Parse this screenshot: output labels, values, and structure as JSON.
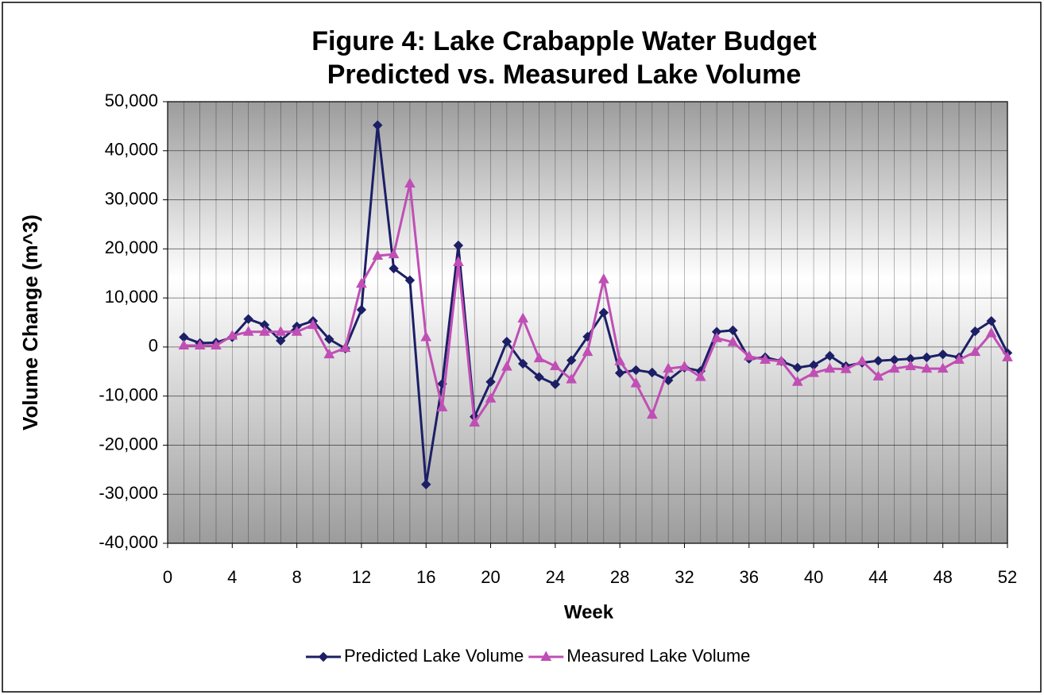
{
  "chart_data": {
    "type": "line",
    "title": "Figure 4:  Lake Crabapple Water Budget",
    "subtitle": "Predicted vs. Measured Lake Volume",
    "x_label": "Week",
    "y_label": "Volume Change (m^3)",
    "x": [
      1,
      2,
      3,
      4,
      5,
      6,
      7,
      8,
      9,
      10,
      11,
      12,
      13,
      14,
      15,
      16,
      17,
      18,
      19,
      20,
      21,
      22,
      23,
      24,
      25,
      26,
      27,
      28,
      29,
      30,
      31,
      32,
      33,
      34,
      35,
      36,
      37,
      38,
      39,
      40,
      41,
      42,
      43,
      44,
      45,
      46,
      47,
      48,
      49,
      50,
      51,
      52
    ],
    "series": [
      {
        "name": "Predicted Lake Volume",
        "color": "#1c1f66",
        "marker": "diamond",
        "values": [
          2000,
          800,
          900,
          2000,
          5700,
          4500,
          1300,
          4200,
          5300,
          1600,
          -300,
          7600,
          45200,
          16000,
          13600,
          -28000,
          -7500,
          20700,
          -14200,
          -7100,
          1100,
          -3400,
          -6100,
          -7600,
          -2700,
          2100,
          7000,
          -5300,
          -4700,
          -5200,
          -6800,
          -4200,
          -4900,
          3100,
          3400,
          -2400,
          -2100,
          -2900,
          -4200,
          -3700,
          -1800,
          -3900,
          -3200,
          -2800,
          -2600,
          -2400,
          -2100,
          -1500,
          -2100,
          3200,
          5300,
          -1200
        ]
      },
      {
        "name": "Measured Lake Volume",
        "color": "#c04fb5",
        "marker": "triangle",
        "values": [
          300,
          300,
          300,
          2300,
          3100,
          3100,
          3100,
          3100,
          4500,
          -1500,
          -200,
          12900,
          18600,
          18900,
          33300,
          2000,
          -12300,
          17300,
          -15400,
          -10500,
          -4000,
          5800,
          -2300,
          -3900,
          -6600,
          -1000,
          13800,
          -2900,
          -7400,
          -13800,
          -4400,
          -4000,
          -6100,
          1800,
          1000,
          -1900,
          -2600,
          -2900,
          -7100,
          -5300,
          -4400,
          -4500,
          -2900,
          -6000,
          -4400,
          -3900,
          -4400,
          -4400,
          -2600,
          -1000,
          2800,
          -2100
        ]
      }
    ],
    "xlim": [
      0,
      52
    ],
    "xticks": [
      0,
      4,
      8,
      12,
      16,
      20,
      24,
      28,
      32,
      36,
      40,
      44,
      48,
      52
    ],
    "ylim": [
      -40000,
      50000
    ],
    "yticks": [
      {
        "value": -40000,
        "label": "-40,000"
      },
      {
        "value": -30000,
        "label": "-30,000"
      },
      {
        "value": -20000,
        "label": "-20,000"
      },
      {
        "value": -10000,
        "label": "-10,000"
      },
      0,
      {
        "value": 10000,
        "label": "10,000"
      },
      {
        "value": 20000,
        "label": "20,000"
      },
      {
        "value": 30000,
        "label": "30,000"
      },
      {
        "value": 40000,
        "label": "40,000"
      },
      {
        "value": 50000,
        "label": "50,000"
      }
    ],
    "grid": true,
    "legend": "bottom"
  }
}
